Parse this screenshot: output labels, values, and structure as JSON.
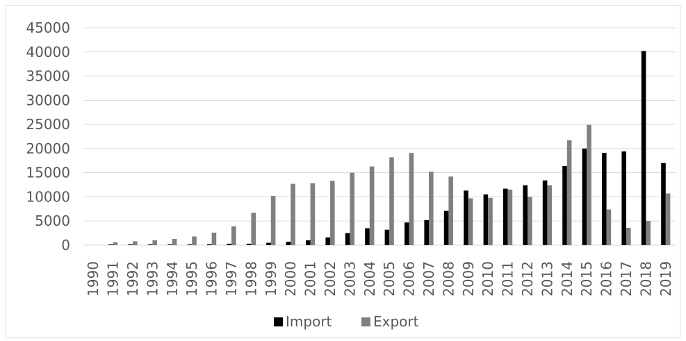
{
  "chart_data": {
    "type": "bar",
    "categories": [
      "1990",
      "1991",
      "1992",
      "1993",
      "1994",
      "1995",
      "1996",
      "1997",
      "1998",
      "1999",
      "2000",
      "2001",
      "2002",
      "2003",
      "2004",
      "2005",
      "2006",
      "2007",
      "2008",
      "2009",
      "2010",
      "2011",
      "2012",
      "2013",
      "2014",
      "2015",
      "2016",
      "2017",
      "2018",
      "2019"
    ],
    "series": [
      {
        "name": "Import",
        "color": "#000000",
        "values": [
          0,
          150,
          150,
          150,
          150,
          150,
          200,
          300,
          300,
          500,
          700,
          1000,
          1600,
          2500,
          3500,
          3200,
          4700,
          5200,
          7100,
          11300,
          10500,
          11700,
          12400,
          13400,
          16400,
          20000,
          19100,
          19400,
          40200,
          17000
        ]
      },
      {
        "name": "Export",
        "color": "#808080",
        "values": [
          0,
          600,
          800,
          1000,
          1300,
          1800,
          2600,
          3900,
          6700,
          10200,
          12700,
          12800,
          13300,
          15000,
          16300,
          18200,
          19100,
          15200,
          14200,
          9700,
          9800,
          11500,
          10000,
          12400,
          21700,
          24900,
          7400,
          3600,
          5000,
          10700
        ]
      }
    ],
    "title": "",
    "xlabel": "",
    "ylabel": "",
    "ylim": [
      0,
      45000
    ],
    "yticks": [
      "0",
      "5000",
      "10000",
      "15000",
      "20000",
      "25000",
      "30000",
      "35000",
      "40000",
      "45000"
    ],
    "grid": true,
    "legend_position": "bottom"
  }
}
